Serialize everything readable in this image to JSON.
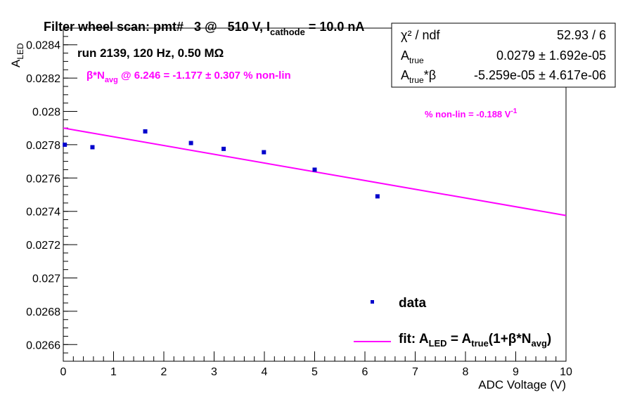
{
  "colors": {
    "data": "#0000cc",
    "fit": "#ff00ff",
    "frame": "#000000",
    "background": "#ffffff"
  },
  "title": {
    "prefix": "Filter wheel scan: pmt#   3 @   510 V, I",
    "sub": "cathode",
    "suffix": " = 10.0 nA"
  },
  "run_info": "run 2139, 120 Hz, 0.50 MΩ",
  "nonlin_annotation": {
    "beta": "β*N",
    "sub": "avg",
    "rest": " @ 6.246 = -1.177 ± 0.307 % non-lin"
  },
  "slope_annotation": {
    "text": "% non-lin = -0.188 V",
    "sup": "-1"
  },
  "stats": {
    "row1_label": "χ² / ndf",
    "row1_value": "52.93 / 6",
    "row2_label": "A",
    "row2_sub": "true",
    "row2_value": "0.0279 ± 1.692e-05",
    "row3_label": "A",
    "row3_sub": "true",
    "row3_suffix": "*β",
    "row3_value": "-5.259e-05 ± 4.617e-06"
  },
  "legend": {
    "data_label": "data",
    "fit_prefix": "fit: A",
    "fit_sub1": "LED",
    "fit_mid": " = A",
    "fit_sub2": "true",
    "fit_mid2": "(1+β*N",
    "fit_sub3": "avg",
    "fit_end": ")"
  },
  "chart_data": {
    "type": "scatter",
    "xlabel": "ADC Voltage (V)",
    "ylabel": "A",
    "ylabel_sub": "LED",
    "xlim": [
      0,
      10
    ],
    "ylim": [
      0.0265,
      0.0285
    ],
    "x_ticks": [
      0,
      1,
      2,
      3,
      4,
      5,
      6,
      7,
      8,
      9,
      10
    ],
    "x_tick_labels": [
      "0",
      "1",
      "2",
      "3",
      "4",
      "5",
      "6",
      "7",
      "8",
      "9",
      "10"
    ],
    "y_ticks": [
      0.0266,
      0.0268,
      0.027,
      0.0272,
      0.0274,
      0.0276,
      0.0278,
      0.028,
      0.0282,
      0.0284
    ],
    "y_tick_labels": [
      "0.0266",
      "0.0268",
      "0.027",
      "0.0272",
      "0.0274",
      "0.0276",
      "0.0278",
      "0.028",
      "0.0282",
      "0.0284"
    ],
    "grid": false,
    "series": [
      {
        "name": "data",
        "points": [
          {
            "x": 0.03,
            "y": 0.0278,
            "err": 7e-06
          },
          {
            "x": 0.58,
            "y": 0.027785,
            "err": 4e-06
          },
          {
            "x": 1.63,
            "y": 0.02788,
            "err": 3e-06
          },
          {
            "x": 2.54,
            "y": 0.02781,
            "err": 4e-06
          },
          {
            "x": 3.19,
            "y": 0.027775,
            "err": 3e-06
          },
          {
            "x": 3.99,
            "y": 0.027755,
            "err": 4e-06
          },
          {
            "x": 5.0,
            "y": 0.02765,
            "err": 4e-06
          },
          {
            "x": 6.25,
            "y": 0.02749,
            "err": 3e-06
          }
        ]
      },
      {
        "name": "fit",
        "type": "line",
        "x": [
          0,
          10
        ],
        "y": [
          0.0279,
          0.027375
        ]
      }
    ]
  }
}
